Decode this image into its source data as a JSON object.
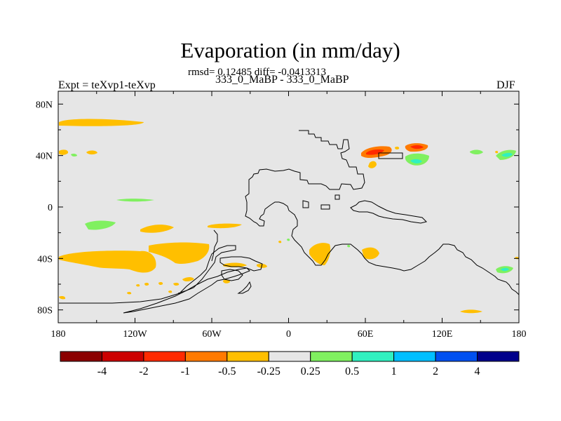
{
  "header": {
    "title": "Evaporation (in mm/day)",
    "stats": "rmsd= 0.12485 diff= -0.0413313",
    "cases": "333_0_MaBP - 333_0_MaBP",
    "experiment": "Expt = teXvp1-teXvp",
    "season": "DJF"
  },
  "chart_data": {
    "type": "contour-map",
    "title": "Evaporation (in mm/day)",
    "subtitle": "333_0_MaBP - 333_0_MaBP",
    "xlabel": "",
    "ylabel": "",
    "xlim": [
      -180,
      180
    ],
    "ylim": [
      -90,
      90
    ],
    "x_tick_values": [
      -180,
      -120,
      -60,
      0,
      60,
      120,
      180
    ],
    "x_tick_labels": [
      "180",
      "120W",
      "60W",
      "0",
      "60E",
      "120E",
      "180"
    ],
    "y_tick_values": [
      80,
      40,
      0,
      -40,
      -80
    ],
    "y_tick_labels": [
      "80N",
      "40N",
      "0",
      "40S",
      "80S"
    ],
    "background_color": "#e6e6e6",
    "colorbar": {
      "levels": [
        "-4",
        "-2",
        "-1",
        "-0.5",
        "-0.25",
        "0.25",
        "0.5",
        "1",
        "2",
        "4"
      ],
      "colors": [
        "#8b0000",
        "#cc0000",
        "#ff2a00",
        "#ff7a00",
        "#ffbf00",
        "#e6e6e6",
        "#80f060",
        "#30f0c0",
        "#00bfff",
        "#0050f0",
        "#00008b"
      ]
    },
    "anomalies": [
      {
        "lon": -157,
        "lat": 65,
        "level": "-0.25 to -0.5"
      },
      {
        "lon": -173,
        "lat": 42,
        "level": "-0.25 to -0.5"
      },
      {
        "lon": -132,
        "lat": 42,
        "level": "-0.25 to -0.5"
      },
      {
        "lon": -161,
        "lat": -40,
        "level": "-0.25 to -0.5"
      },
      {
        "lon": -105,
        "lat": -36,
        "level": "-0.25 to -0.5"
      },
      {
        "lon": -112,
        "lat": -18,
        "level": "-0.25 to -0.5"
      },
      {
        "lon": -133,
        "lat": -15,
        "level": "0.25 to 0.5"
      },
      {
        "lon": -120,
        "lat": 5,
        "level": "0.25 to 0.5"
      },
      {
        "lon": 68,
        "lat": 42,
        "level": "-0.5 to -2"
      },
      {
        "lon": 99,
        "lat": 44,
        "level": "-0.5 to -2"
      },
      {
        "lon": 101,
        "lat": 33,
        "level": "0.5 to 1"
      },
      {
        "lon": 39,
        "lat": -35,
        "level": "-0.25 to -0.5"
      },
      {
        "lon": 168,
        "lat": 42,
        "level": "0.25 to 1"
      },
      {
        "lon": 168,
        "lat": -49,
        "level": "0.25 to 1"
      },
      {
        "lon": 141,
        "lat": -82,
        "level": "-0.25 to -0.5"
      }
    ]
  }
}
